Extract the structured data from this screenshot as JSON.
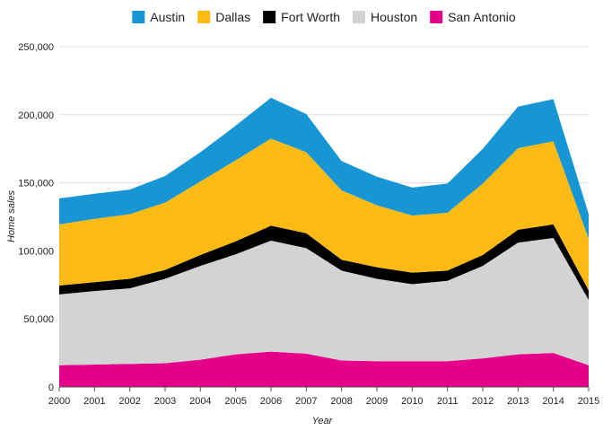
{
  "chart_data": {
    "type": "area",
    "stacked": true,
    "title": "",
    "xlabel": "Year",
    "ylabel": "Home sales",
    "x": [
      "2000",
      "2001",
      "2002",
      "2003",
      "2004",
      "2005",
      "2006",
      "2007",
      "2008",
      "2009",
      "2010",
      "2011",
      "2012",
      "2013",
      "2014",
      "2015"
    ],
    "ylim": [
      0,
      250000
    ],
    "yticks": [
      0,
      50000,
      100000,
      150000,
      200000,
      250000
    ],
    "ytick_labels": [
      "0",
      "50,000",
      "100,000",
      "150,000",
      "200,000",
      "250,000"
    ],
    "grid": true,
    "legend_position": "top-center",
    "legend_order": [
      "Austin",
      "Dallas",
      "Fort Worth",
      "Houston",
      "San Antonio"
    ],
    "series": [
      {
        "name": "San Antonio",
        "color": "#e5008a",
        "values": [
          16000,
          16500,
          17000,
          17500,
          20000,
          24000,
          26000,
          24500,
          19500,
          19000,
          19000,
          19000,
          21000,
          24000,
          25000,
          16000
        ]
      },
      {
        "name": "Houston",
        "color": "#d3d3d3",
        "values": [
          52000,
          54000,
          55500,
          62000,
          69000,
          73500,
          81500,
          77500,
          66000,
          60500,
          56500,
          59000,
          68000,
          82000,
          84500,
          48000
        ]
      },
      {
        "name": "Fort Worth",
        "color": "#000000",
        "values": [
          6500,
          6500,
          7000,
          6500,
          8000,
          9500,
          11000,
          11000,
          8000,
          8500,
          8500,
          7500,
          8000,
          9500,
          10000,
          7000
        ]
      },
      {
        "name": "Dallas",
        "color": "#fbbb14",
        "values": [
          45000,
          46500,
          47500,
          49500,
          54000,
          59500,
          64000,
          59500,
          51000,
          45500,
          42000,
          42500,
          52500,
          60000,
          61000,
          38000
        ]
      },
      {
        "name": "Austin",
        "color": "#1796d3",
        "values": [
          19000,
          18500,
          18000,
          19500,
          21500,
          25500,
          30000,
          28000,
          21500,
          21000,
          20500,
          21500,
          25500,
          30500,
          31000,
          18000
        ]
      }
    ]
  }
}
